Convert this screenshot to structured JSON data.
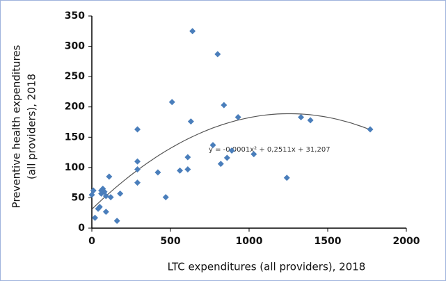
{
  "chart_data": {
    "type": "scatter",
    "xlabel": "LTC expenditures (all providers), 2018",
    "ylabel": [
      "Preventive health expenditures",
      "(all providers), 2018"
    ],
    "x": [
      640,
      800,
      510,
      840,
      930,
      630,
      290,
      1330,
      1390,
      1770,
      770,
      1030,
      820,
      860,
      890,
      290,
      290,
      420,
      560,
      610,
      610,
      1240,
      290,
      470,
      180,
      110,
      120,
      70,
      80,
      90,
      60,
      50,
      40,
      90,
      20,
      10,
      0,
      160,
      60
    ],
    "series": [
      {
        "color": "#4a7ebb",
        "values": [
          325,
          287,
          208,
          203,
          183,
          176,
          163,
          183,
          178,
          163,
          137,
          122,
          106,
          116,
          128,
          110,
          97,
          92,
          95,
          97,
          117,
          83,
          75,
          51,
          57,
          85,
          51,
          65,
          60,
          53,
          57,
          35,
          32,
          27,
          17,
          62,
          55,
          12,
          62
        ]
      }
    ],
    "trendline": {
      "label": "y = -0,0001x² + 0,2511x + 31,207",
      "coefficients": [
        -0.0001,
        0.2511,
        31.207
      ],
      "color": "#555555"
    },
    "xlim": [
      0,
      2000
    ],
    "xticks": [
      0,
      500,
      1000,
      1500,
      2000
    ],
    "ylim": [
      0,
      350
    ],
    "yticks": [
      0,
      50,
      100,
      150,
      200,
      250,
      300,
      350
    ],
    "grid": false
  }
}
